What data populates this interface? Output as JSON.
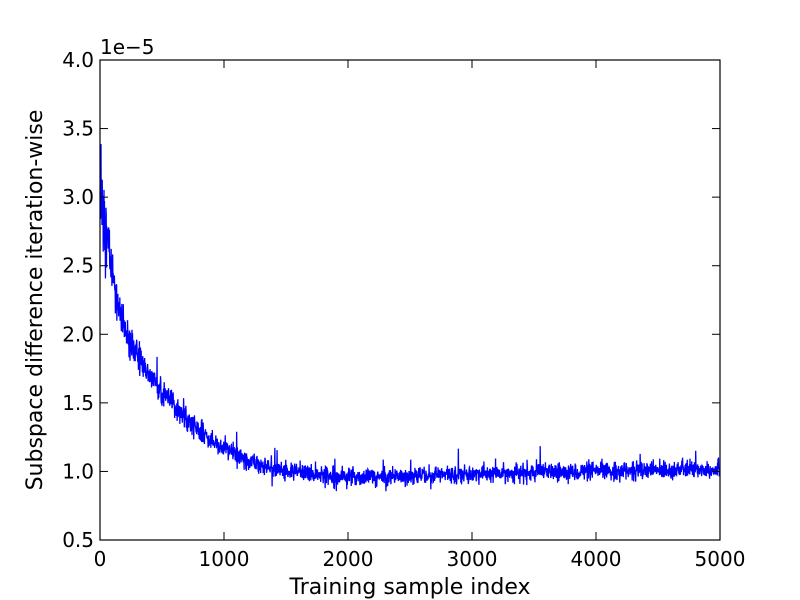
{
  "chart_data": {
    "type": "line",
    "title": "",
    "xlabel": "Training sample index",
    "ylabel": "Subspace difference iteration-wise",
    "y_offset_label": "1e−5",
    "xlim": [
      0,
      5000
    ],
    "ylim": [
      0.5,
      4.0
    ],
    "y_scale_factor": 1e-05,
    "x_ticks": [
      0,
      1000,
      2000,
      3000,
      4000,
      5000
    ],
    "x_tick_labels": [
      "0",
      "1000",
      "2000",
      "3000",
      "4000",
      "5000"
    ],
    "y_ticks": [
      0.5,
      1.0,
      1.5,
      2.0,
      2.5,
      3.0,
      3.5,
      4.0
    ],
    "y_tick_labels": [
      "0.5",
      "1.0",
      "1.5",
      "2.0",
      "2.5",
      "3.0",
      "3.5",
      "4.0"
    ],
    "grid": false,
    "line_color": "#0000ff",
    "series": [
      {
        "x": [
          0,
          25,
          50,
          75,
          100,
          150,
          200,
          300,
          400,
          500,
          600,
          700,
          800,
          900,
          1000,
          1100,
          1200,
          1300,
          1400,
          1500,
          1750,
          2000,
          2250,
          2500,
          3000,
          3500,
          4000,
          4500,
          5000
        ],
        "values": [
          3.0,
          2.9,
          2.75,
          2.6,
          2.45,
          2.2,
          2.0,
          1.85,
          1.7,
          1.58,
          1.48,
          1.38,
          1.3,
          1.22,
          1.17,
          1.12,
          1.08,
          1.05,
          1.02,
          1.0,
          0.98,
          0.96,
          0.96,
          0.97,
          0.98,
          0.99,
          1.0,
          1.01,
          1.02
        ],
        "noise_amplitude": [
          0.35,
          0.3,
          0.25,
          0.2,
          0.18,
          0.14,
          0.12,
          0.1,
          0.09,
          0.08,
          0.08,
          0.07,
          0.07,
          0.06,
          0.06,
          0.06,
          0.06,
          0.06,
          0.06,
          0.06,
          0.06,
          0.06,
          0.06,
          0.06,
          0.06,
          0.06,
          0.06,
          0.06,
          0.06
        ]
      }
    ]
  }
}
